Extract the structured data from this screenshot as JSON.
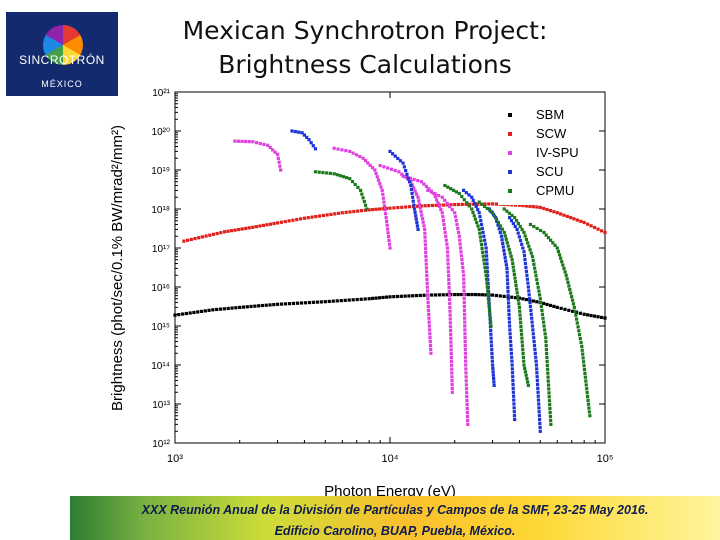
{
  "logo": {
    "word": "SINCROTRÓN",
    "country": "MÉXICO"
  },
  "slide": {
    "title_line1": "Mexican Synchrotron Project:",
    "title_line2": "Brightness Calculations",
    "footer_line1": "XXX Reunión Anual de la División de Partículas y Campos de la SMF, 23-25 May 2016.",
    "footer_line2": "Edificio Carolino, BUAP, Puebla, México."
  },
  "chart_data": {
    "type": "scatter",
    "title": "",
    "xlabel": "Photon Energy (eV)",
    "ylabel": "Brightness (phot/sec/0.1% BW/mrad²/mm²)",
    "xscale": "log",
    "yscale": "log",
    "xlim": [
      1000,
      100000
    ],
    "ylim": [
      1000000000000.0,
      1e+21
    ],
    "x_ticks": [
      "10³",
      "10⁴",
      "10⁵"
    ],
    "y_ticks": [
      "10¹²",
      "10¹³",
      "10¹⁴",
      "10¹⁵",
      "10¹⁶",
      "10¹⁷",
      "10¹⁸",
      "10¹⁹",
      "10²⁰",
      "10²¹"
    ],
    "legend_position": "top-right",
    "series": [
      {
        "name": "SBM",
        "color": "#000000",
        "segments": [
          [
            [
              1000,
              1900000000000000.0
            ],
            [
              1500,
              2600000000000000.0
            ],
            [
              2000,
              3000000000000000.0
            ],
            [
              3000,
              3600000000000000.0
            ],
            [
              5000,
              4200000000000000.0
            ],
            [
              8000,
              5000000000000000.0
            ],
            [
              10000,
              5600000000000000.0
            ],
            [
              15000,
              6200000000000000.0
            ],
            [
              20000,
              6400000000000000.0
            ],
            [
              25000,
              6400000000000000.0
            ],
            [
              30000,
              6200000000000000.0
            ],
            [
              40000,
              5200000000000000.0
            ],
            [
              50000,
              4000000000000000.0
            ],
            [
              60000,
              3000000000000000.0
            ],
            [
              80000,
              2000000000000000.0
            ],
            [
              100000,
              1600000000000000.0
            ]
          ]
        ]
      },
      {
        "name": "SCW",
        "color": "#e0201b",
        "segments": [
          [
            [
              1100,
              1.5e+17
            ],
            [
              1700,
              2.6e+17
            ],
            [
              2300,
              3.4e+17
            ],
            [
              3000,
              4.4e+17
            ],
            [
              4000,
              5.8e+17
            ],
            [
              6000,
              8e+17
            ],
            [
              8000,
              9.5e+17
            ],
            [
              10000,
              1.05e+18
            ],
            [
              14000,
              1.2e+18
            ],
            [
              20000,
              1.3e+18
            ],
            [
              30000,
              1.35e+18
            ],
            [
              40000,
              1.25e+18
            ],
            [
              50000,
              1.1e+18
            ],
            [
              60000,
              8e+17
            ],
            [
              80000,
              4.5e+17
            ],
            [
              100000,
              2.5e+17
            ]
          ]
        ]
      },
      {
        "name": "IV-SPU",
        "color": "#e040e0",
        "segments": [
          [
            [
              1900,
              5.5e+19
            ],
            [
              2300,
              5.3e+19
            ],
            [
              2700,
              4.3e+19
            ],
            [
              3000,
              2.5e+19
            ],
            [
              3100,
              1e+19
            ]
          ],
          [
            [
              5500,
              3.6e+19
            ],
            [
              6500,
              3e+19
            ],
            [
              7500,
              2e+19
            ],
            [
              8500,
              1e+19
            ],
            [
              9200,
              3e+18
            ],
            [
              9600,
              6e+17
            ],
            [
              10000,
              1e+17
            ]
          ],
          [
            [
              9000,
              1.3e+19
            ],
            [
              11000,
              9e+18
            ],
            [
              12500,
              5e+18
            ],
            [
              13500,
              2e+18
            ],
            [
              14500,
              3e+17
            ],
            [
              15000,
              5000000000000000.0
            ],
            [
              15500,
              200000000000000.0
            ]
          ],
          [
            [
              11500,
              7e+18
            ],
            [
              14000,
              5e+18
            ],
            [
              16000,
              2.5e+18
            ],
            [
              17500,
              8e+17
            ],
            [
              18500,
              1e+17
            ],
            [
              19000,
              3000000000000000.0
            ],
            [
              19500,
              20000000000000.0
            ]
          ],
          [
            [
              15000,
              3e+18
            ],
            [
              17500,
              2e+18
            ],
            [
              20000,
              8e+17
            ],
            [
              21000,
              2e+17
            ],
            [
              22000,
              2e+16
            ],
            [
              22500,
              100000000000000.0
            ],
            [
              23000,
              3000000000000.0
            ]
          ]
        ]
      },
      {
        "name": "SCU",
        "color": "#1c34d8",
        "segments": [
          [
            [
              3500,
              1e+20
            ],
            [
              3900,
              9e+19
            ],
            [
              4200,
              6e+19
            ],
            [
              4500,
              3.5e+19
            ]
          ],
          [
            [
              10000,
              3e+19
            ],
            [
              11500,
              1.5e+19
            ],
            [
              12500,
              4e+18
            ],
            [
              13000,
              1e+18
            ],
            [
              13500,
              3e+17
            ]
          ],
          [
            [
              22000,
              3e+18
            ],
            [
              24000,
              2e+18
            ],
            [
              26000,
              8e+17
            ],
            [
              28000,
              1e+17
            ],
            [
              29000,
              3000000000000000.0
            ],
            [
              30000,
              100000000000000.0
            ],
            [
              30500,
              30000000000000.0
            ]
          ],
          [
            [
              29000,
              1e+18
            ],
            [
              31000,
              6e+17
            ],
            [
              33000,
              2e+17
            ],
            [
              35000,
              3e+16
            ],
            [
              36000,
              1000000000000000.0
            ],
            [
              37000,
              100000000000000.0
            ],
            [
              38000,
              4000000000000.0
            ]
          ],
          [
            [
              36000,
              6e+17
            ],
            [
              39000,
              3e+17
            ],
            [
              42000,
              8e+16
            ],
            [
              44000,
              1e+16
            ],
            [
              46000,
              1000000000000000.0
            ],
            [
              48000,
              100000000000000.0
            ],
            [
              50000,
              2000000000000.0
            ]
          ]
        ]
      },
      {
        "name": "CPMU",
        "color": "#1c7a1c",
        "segments": [
          [
            [
              4500,
              9e+18
            ],
            [
              5500,
              8e+18
            ],
            [
              6500,
              6e+18
            ],
            [
              7300,
              3e+18
            ],
            [
              7800,
              1e+18
            ]
          ],
          [
            [
              18000,
              4e+18
            ],
            [
              21000,
              2.5e+18
            ],
            [
              24000,
              1e+18
            ],
            [
              26000,
              3e+17
            ],
            [
              28000,
              2e+16
            ],
            [
              29500,
              1000000000000000.0
            ]
          ],
          [
            [
              26000,
              1.5e+18
            ],
            [
              30000,
              8e+17
            ],
            [
              34000,
              2.5e+17
            ],
            [
              37000,
              5e+16
            ],
            [
              40000,
              3000000000000000.0
            ],
            [
              42000,
              100000000000000.0
            ],
            [
              44000,
              30000000000000.0
            ]
          ],
          [
            [
              34000,
              1e+18
            ],
            [
              38000,
              6e+17
            ],
            [
              42000,
              2.5e+17
            ],
            [
              46000,
              6e+16
            ],
            [
              50000,
              5000000000000000.0
            ],
            [
              53000,
              500000000000000.0
            ],
            [
              56000,
              3000000000000.0
            ]
          ],
          [
            [
              45000,
              4e+17
            ],
            [
              52000,
              2.5e+17
            ],
            [
              60000,
              1e+17
            ],
            [
              66000,
              2e+16
            ],
            [
              72000,
              3000000000000000.0
            ],
            [
              78000,
              300000000000000.0
            ],
            [
              85000,
              5000000000000.0
            ]
          ]
        ]
      }
    ]
  }
}
